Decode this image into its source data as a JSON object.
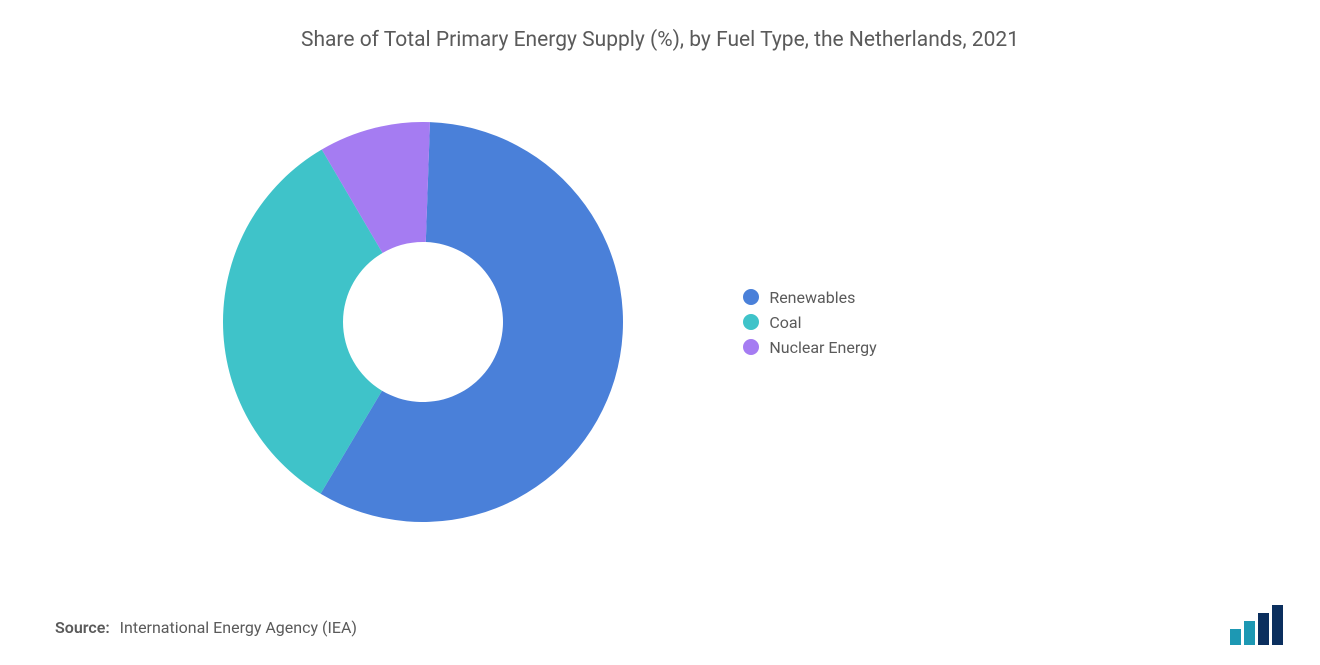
{
  "chart": {
    "type": "donut",
    "title": "Share of Total Primary Energy Supply (%), by Fuel Type, the Netherlands, 2021",
    "title_fontsize": 21,
    "title_color": "#5a5a5a",
    "background_color": "#ffffff",
    "inner_radius_ratio": 0.4,
    "slices": [
      {
        "label": "Renewables",
        "value": 58,
        "color": "#4a80d9"
      },
      {
        "label": "Coal",
        "value": 33,
        "color": "#3fc3c9"
      },
      {
        "label": "Nuclear Energy",
        "value": 9,
        "color": "#a57cf2"
      }
    ],
    "start_angle_deg": -88,
    "direction": "clockwise",
    "legend": {
      "position": "right",
      "fontsize": 16,
      "text_color": "#5a5a5a",
      "marker_shape": "circle",
      "marker_size": 16
    }
  },
  "source": {
    "label": "Source:",
    "text": "International Energy Agency (IEA)",
    "fontsize": 16,
    "color": "#5a5a5a"
  },
  "logo": {
    "bars": [
      "#1d98b3",
      "#1d98b3",
      "#0b2f5e",
      "#0b2f5e"
    ],
    "shape": "stepped-bars"
  }
}
